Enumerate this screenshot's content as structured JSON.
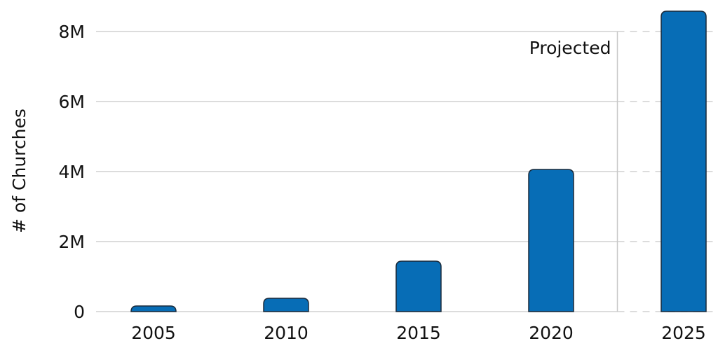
{
  "chart_data": {
    "type": "bar",
    "title": "",
    "xlabel": "",
    "ylabel": "# of Churches",
    "categories": [
      "2005",
      "2010",
      "2015",
      "2020",
      "2025"
    ],
    "values": [
      160000,
      380000,
      1440000,
      4060000,
      8580000
    ],
    "ylim": [
      0,
      8000000
    ],
    "yticks": [
      0,
      2000000,
      4000000,
      6000000,
      8000000
    ],
    "ytick_labels": [
      "0",
      "2M",
      "4M",
      "6M",
      "8M"
    ],
    "grid": true,
    "annotation": "Projected",
    "projected_from": "2025",
    "bar_color": "#076db6",
    "bar_edge_color": "#1a2a3a"
  }
}
